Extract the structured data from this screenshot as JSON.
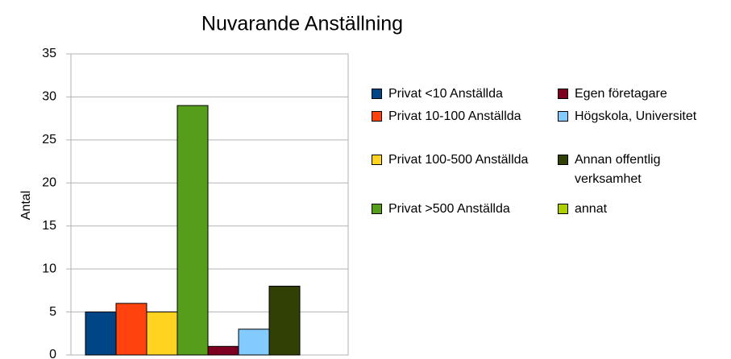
{
  "chart_data": {
    "type": "bar",
    "title": "Nuvarande Anställning",
    "y_label": "Antal",
    "categories": [
      null
    ],
    "series": [
      {
        "name": "Privat <10 Anställda",
        "color": "#004586",
        "values": [
          5
        ]
      },
      {
        "name": "Privat 10-100 Anställda",
        "color": "#ff420e",
        "values": [
          6
        ]
      },
      {
        "name": "Privat 100-500 Anställda",
        "color": "#ffd320",
        "values": [
          5
        ]
      },
      {
        "name": "Privat >500 Anställda",
        "color": "#579d1c",
        "values": [
          29
        ]
      },
      {
        "name": "Egen företagare",
        "color": "#7e0021",
        "values": [
          1
        ]
      },
      {
        "name": "Högskola, Universitet",
        "color": "#83caff",
        "values": [
          3
        ]
      },
      {
        "name": "Annan offentlig verksamhet",
        "color": "#314004",
        "values": [
          8
        ]
      },
      {
        "name": "annat",
        "color": "#aecf00",
        "values": [
          0
        ]
      }
    ],
    "ylim": [
      0,
      35
    ],
    "yticks": [
      0,
      5,
      10,
      15,
      20,
      25,
      30,
      35
    ],
    "grid": true,
    "legend": "right"
  }
}
